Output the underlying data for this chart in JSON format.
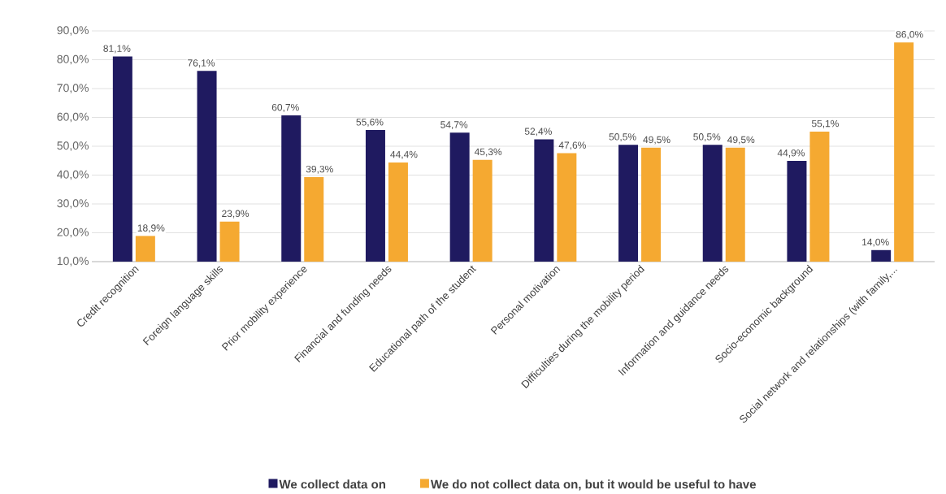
{
  "chart_data": {
    "type": "bar",
    "categories": [
      "Credit recognition",
      "Foreign language skills",
      "Prior mobility experience",
      "Financial and funding needs",
      "Educational path of the student",
      "Personal motivation",
      "Difficulties during the mobility period",
      "Information and guidance needs",
      "Socio-economic background",
      "Social network and relationships (with family,..."
    ],
    "series": [
      {
        "name": "We collect data on",
        "color": "#1f1a60",
        "values": [
          81.1,
          76.1,
          60.7,
          55.6,
          54.7,
          52.4,
          50.5,
          50.5,
          44.9,
          14.0
        ],
        "value_labels": [
          "81,1%",
          "76,1%",
          "60,7%",
          "55,6%",
          "54,7%",
          "52,4%",
          "50,5%",
          "50,5%",
          "44,9%",
          "14,0%"
        ]
      },
      {
        "name": "We do not collect data on, but it would be useful to have",
        "color": "#f5a931",
        "values": [
          18.9,
          23.9,
          39.3,
          44.4,
          45.3,
          47.6,
          49.5,
          49.5,
          55.1,
          86.0
        ],
        "value_labels": [
          "18,9%",
          "23,9%",
          "39,3%",
          "44,4%",
          "45,3%",
          "47,6%",
          "49,5%",
          "49,5%",
          "55,1%",
          "86,0%"
        ]
      }
    ],
    "ylim": [
      10,
      90
    ],
    "yticks": [
      {
        "value": 10,
        "label": "10,0%"
      },
      {
        "value": 20,
        "label": "20,0%"
      },
      {
        "value": 30,
        "label": "30,0%"
      },
      {
        "value": 40,
        "label": "40,0%"
      },
      {
        "value": 50,
        "label": "50,0%"
      },
      {
        "value": 60,
        "label": "60,0%"
      },
      {
        "value": 70,
        "label": "70,0%"
      },
      {
        "value": 80,
        "label": "80,0%"
      },
      {
        "value": 90,
        "label": "90,0%"
      }
    ],
    "grid": "y",
    "legend": "bottom"
  }
}
